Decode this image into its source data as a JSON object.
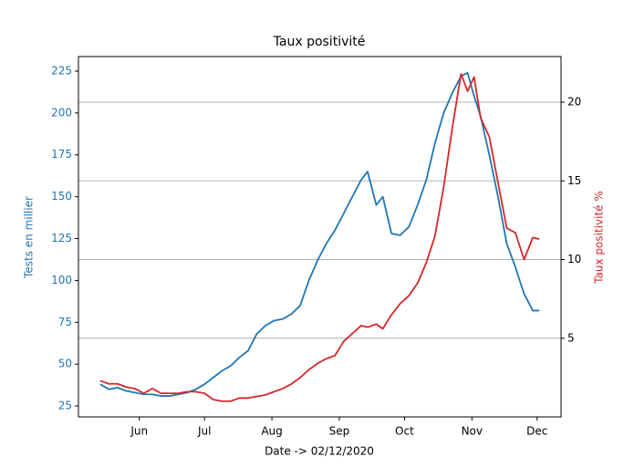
{
  "chart_data": {
    "type": "line",
    "title": "Taux positivité",
    "xlabel": "Date -> 02/12/2020",
    "ylabel": "Tests en millier",
    "y2label": "Taux positivité %",
    "x": [
      "2020-05-14",
      "2020-05-18",
      "2020-05-22",
      "2020-05-26",
      "2020-05-30",
      "2020-06-03",
      "2020-06-07",
      "2020-06-11",
      "2020-06-15",
      "2020-06-19",
      "2020-06-23",
      "2020-06-27",
      "2020-07-01",
      "2020-07-05",
      "2020-07-09",
      "2020-07-13",
      "2020-07-17",
      "2020-07-21",
      "2020-07-25",
      "2020-07-29",
      "2020-08-02",
      "2020-08-06",
      "2020-08-10",
      "2020-08-14",
      "2020-08-18",
      "2020-08-22",
      "2020-08-26",
      "2020-08-30",
      "2020-09-03",
      "2020-09-07",
      "2020-09-11",
      "2020-09-14",
      "2020-09-18",
      "2020-09-21",
      "2020-09-25",
      "2020-09-29",
      "2020-10-03",
      "2020-10-07",
      "2020-10-11",
      "2020-10-15",
      "2020-10-19",
      "2020-10-23",
      "2020-10-27",
      "2020-10-30",
      "2020-11-02",
      "2020-11-05",
      "2020-11-09",
      "2020-11-13",
      "2020-11-17",
      "2020-11-21",
      "2020-11-25",
      "2020-11-29",
      "2020-12-02"
    ],
    "series": [
      {
        "name": "Tests en millier",
        "color": "#1f77b4",
        "axis": "y",
        "values": [
          38,
          35,
          36,
          34,
          33,
          32,
          32,
          31,
          31,
          32,
          33,
          35,
          38,
          42,
          46,
          49,
          54,
          58,
          68,
          73,
          76,
          77,
          80,
          85,
          100,
          112,
          122,
          130,
          140,
          150,
          160,
          165,
          145,
          150,
          128,
          127,
          132,
          145,
          160,
          182,
          200,
          212,
          222,
          224,
          210,
          198,
          175,
          150,
          122,
          108,
          92,
          82,
          82
        ]
      },
      {
        "name": "Taux positivité %",
        "color": "#d62728",
        "axis": "y2",
        "values": [
          2.3,
          2.1,
          2.1,
          1.9,
          1.8,
          1.5,
          1.8,
          1.5,
          1.5,
          1.5,
          1.6,
          1.6,
          1.5,
          1.1,
          1.0,
          1.0,
          1.2,
          1.2,
          1.3,
          1.4,
          1.6,
          1.8,
          2.1,
          2.5,
          3.0,
          3.4,
          3.7,
          3.9,
          4.8,
          5.3,
          5.8,
          5.7,
          5.9,
          5.6,
          6.5,
          7.2,
          7.7,
          8.5,
          9.8,
          11.5,
          14.6,
          18.4,
          21.8,
          20.7,
          21.6,
          19.0,
          17.8,
          14.9,
          12.0,
          11.7,
          10.0,
          11.4,
          11.3
        ]
      }
    ],
    "xlim": [
      "2020-05-04",
      "2020-12-12"
    ],
    "xticks": [
      {
        "value": "2020-06-01",
        "label": "Jun"
      },
      {
        "value": "2020-07-01",
        "label": "Jul"
      },
      {
        "value": "2020-08-01",
        "label": "Aug"
      },
      {
        "value": "2020-09-01",
        "label": "Sep"
      },
      {
        "value": "2020-10-01",
        "label": "Oct"
      },
      {
        "value": "2020-11-01",
        "label": "Nov"
      },
      {
        "value": "2020-12-01",
        "label": "Dec"
      }
    ],
    "ylim": [
      18.5,
      233.7
    ],
    "yticks": [
      25,
      50,
      75,
      100,
      125,
      150,
      175,
      200,
      225
    ],
    "y2lim": [
      0,
      22.9
    ],
    "y2ticks": [
      5,
      10,
      15,
      20
    ],
    "grid": "y2"
  }
}
